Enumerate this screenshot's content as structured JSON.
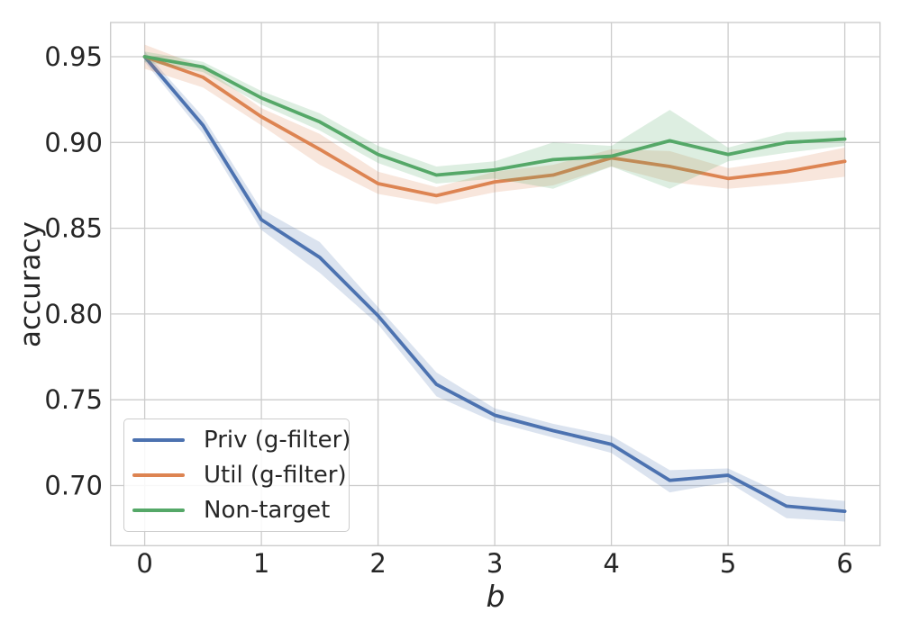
{
  "chart_data": {
    "type": "line",
    "title": "",
    "xlabel": "b",
    "ylabel": "accuracy",
    "grid": true,
    "legend_position": "lower left",
    "background_color": "#ffffff",
    "grid_color": "#cccccc",
    "text_color": "#262626",
    "band_opacity": 0.2,
    "xlim": [
      -0.29,
      6.31
    ],
    "ylim": [
      0.665,
      0.97
    ],
    "x_ticks": [
      0,
      1,
      2,
      3,
      4,
      5,
      6
    ],
    "x_tick_labels": [
      "0",
      "1",
      "2",
      "3",
      "4",
      "5",
      "6"
    ],
    "y_ticks": [
      0.7,
      0.75,
      0.8,
      0.85,
      0.9,
      0.95
    ],
    "y_tick_labels": [
      "0.70",
      "0.75",
      "0.80",
      "0.85",
      "0.90",
      "0.95"
    ],
    "x": [
      0,
      0.5,
      1,
      1.5,
      2,
      2.5,
      3,
      3.5,
      4,
      4.5,
      5,
      5.5,
      6
    ],
    "series": [
      {
        "name": "Priv (g-filter)",
        "color": "#4c72b0",
        "values": [
          0.95,
          0.91,
          0.855,
          0.833,
          0.799,
          0.759,
          0.741,
          0.732,
          0.724,
          0.703,
          0.706,
          0.688,
          0.685
        ],
        "upper": [
          0.953,
          0.915,
          0.861,
          0.842,
          0.804,
          0.766,
          0.745,
          0.736,
          0.729,
          0.709,
          0.71,
          0.694,
          0.691
        ],
        "lower": [
          0.947,
          0.905,
          0.849,
          0.824,
          0.794,
          0.752,
          0.737,
          0.728,
          0.719,
          0.696,
          0.702,
          0.681,
          0.679
        ]
      },
      {
        "name": "Util (g-filter)",
        "color": "#dd8452",
        "values": [
          0.95,
          0.938,
          0.915,
          0.896,
          0.876,
          0.869,
          0.877,
          0.881,
          0.891,
          0.886,
          0.879,
          0.883,
          0.889
        ],
        "upper": [
          0.957,
          0.944,
          0.92,
          0.905,
          0.883,
          0.874,
          0.883,
          0.887,
          0.896,
          0.895,
          0.885,
          0.89,
          0.897
        ],
        "lower": [
          0.943,
          0.932,
          0.91,
          0.887,
          0.87,
          0.864,
          0.871,
          0.875,
          0.886,
          0.877,
          0.873,
          0.876,
          0.88
        ]
      },
      {
        "name": "Non-target",
        "color": "#55a868",
        "values": [
          0.95,
          0.944,
          0.926,
          0.912,
          0.893,
          0.881,
          0.884,
          0.89,
          0.892,
          0.901,
          0.893,
          0.9,
          0.902
        ],
        "upper": [
          0.953,
          0.947,
          0.93,
          0.917,
          0.898,
          0.886,
          0.889,
          0.9,
          0.898,
          0.919,
          0.897,
          0.906,
          0.907
        ],
        "lower": [
          0.947,
          0.941,
          0.922,
          0.907,
          0.888,
          0.876,
          0.879,
          0.873,
          0.886,
          0.873,
          0.889,
          0.894,
          0.898
        ]
      }
    ]
  }
}
